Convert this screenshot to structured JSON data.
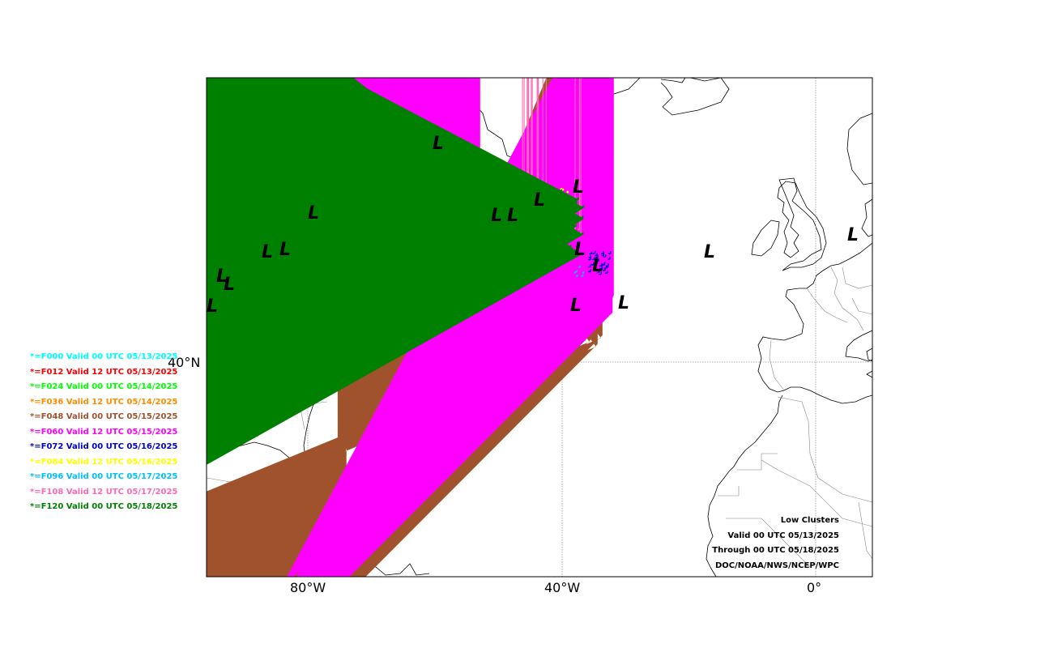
{
  "map": {
    "lat_label": "40°N",
    "lon_labels": [
      "80°W",
      "40°W",
      "0°"
    ]
  },
  "legend": [
    {
      "label": "*=F000 Valid 00 UTC 05/13/2025",
      "color": "#00ffff",
      "marker": "circle"
    },
    {
      "label": "*=F012 Valid 12 UTC 05/13/2025",
      "color": "#ff0000",
      "marker": "square"
    },
    {
      "label": "*=F024 Valid 00 UTC 05/14/2025",
      "color": "#00ff00",
      "marker": "triangle-up"
    },
    {
      "label": "*=F036 Valid 12 UTC 05/14/2025",
      "color": "#ff8c00",
      "marker": "octagon"
    },
    {
      "label": "*=F048 Valid 00 UTC 05/15/2025",
      "color": "#a0522d",
      "marker": "star"
    },
    {
      "label": "*=F060 Valid 12 UTC 05/15/2025",
      "color": "#ff00ff",
      "marker": "diamond"
    },
    {
      "label": "*=F072 Valid 00 UTC 05/16/2025",
      "color": "#0000cd",
      "marker": "plus"
    },
    {
      "label": "*=F084 Valid 12 UTC 05/16/2025",
      "color": "#ffff00",
      "marker": "x"
    },
    {
      "label": "*=F096 Valid 00 UTC 05/17/2025",
      "color": "#00bfff",
      "marker": "triangle-left"
    },
    {
      "label": "*=F108 Valid 12 UTC 05/17/2025",
      "color": "#ff69b4",
      "marker": "tri-down"
    },
    {
      "label": "*=F120 Valid 00 UTC 05/18/2025",
      "color": "#008000",
      "marker": "pentagon"
    }
  ],
  "low_symbol": "L",
  "credits": {
    "line1": "Low Clusters",
    "line2": "Valid 00 UTC 05/13/2025",
    "line3": "Through 00 UTC 05/18/2025",
    "line4": "DOC/NOAA/NWS/NCEP/WPC"
  }
}
